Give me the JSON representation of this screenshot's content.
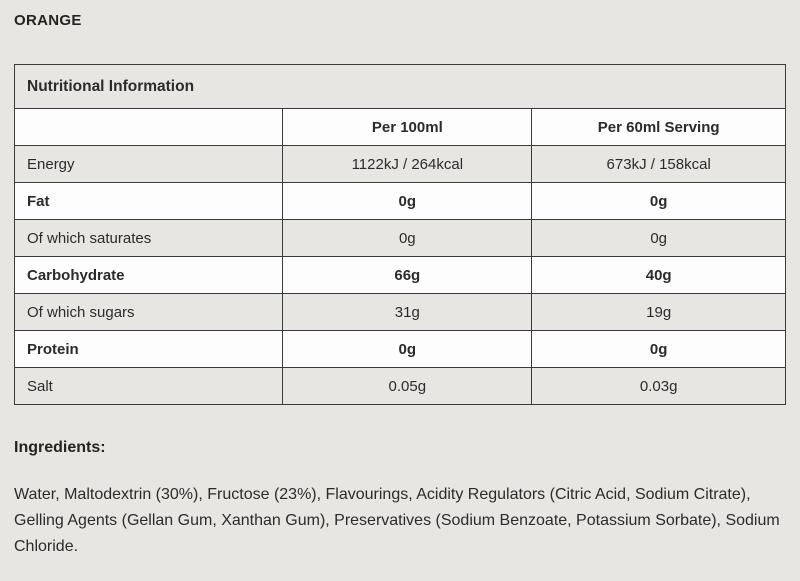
{
  "page": {
    "title": "ORANGE",
    "background_color": "#e8e6e3",
    "stripe_color": "#e8e6e3",
    "white_row_color": "#fdfdfd",
    "border_color": "#3b3b3b",
    "text_color": "#2b2b2b"
  },
  "table": {
    "caption": "Nutritional Information",
    "columns": {
      "label": "",
      "per100": "Per 100ml",
      "per60": "Per 60ml Serving"
    },
    "rows": [
      {
        "label": "Energy",
        "per100": "1122kJ / 264kcal",
        "per60": "673kJ / 158kcal",
        "emphasis": false
      },
      {
        "label": "Fat",
        "per100": "0g",
        "per60": "0g",
        "emphasis": true
      },
      {
        "label": "Of which saturates",
        "per100": "0g",
        "per60": "0g",
        "emphasis": false
      },
      {
        "label": "Carbohydrate",
        "per100": "66g",
        "per60": "40g",
        "emphasis": true
      },
      {
        "label": "Of which sugars",
        "per100": "31g",
        "per60": "19g",
        "emphasis": false
      },
      {
        "label": "Protein",
        "per100": "0g",
        "per60": "0g",
        "emphasis": true
      },
      {
        "label": "Salt",
        "per100": "0.05g",
        "per60": "0.03g",
        "emphasis": false
      }
    ]
  },
  "ingredients": {
    "heading": "Ingredients:",
    "text": "Water, Maltodextrin (30%), Fructose (23%), Flavourings, Acidity Regulators (Citric Acid, Sodium Citrate), Gelling Agents (Gellan Gum, Xanthan Gum), Preservatives (Sodium Benzoate, Potassium Sorbate), Sodium Chloride."
  }
}
